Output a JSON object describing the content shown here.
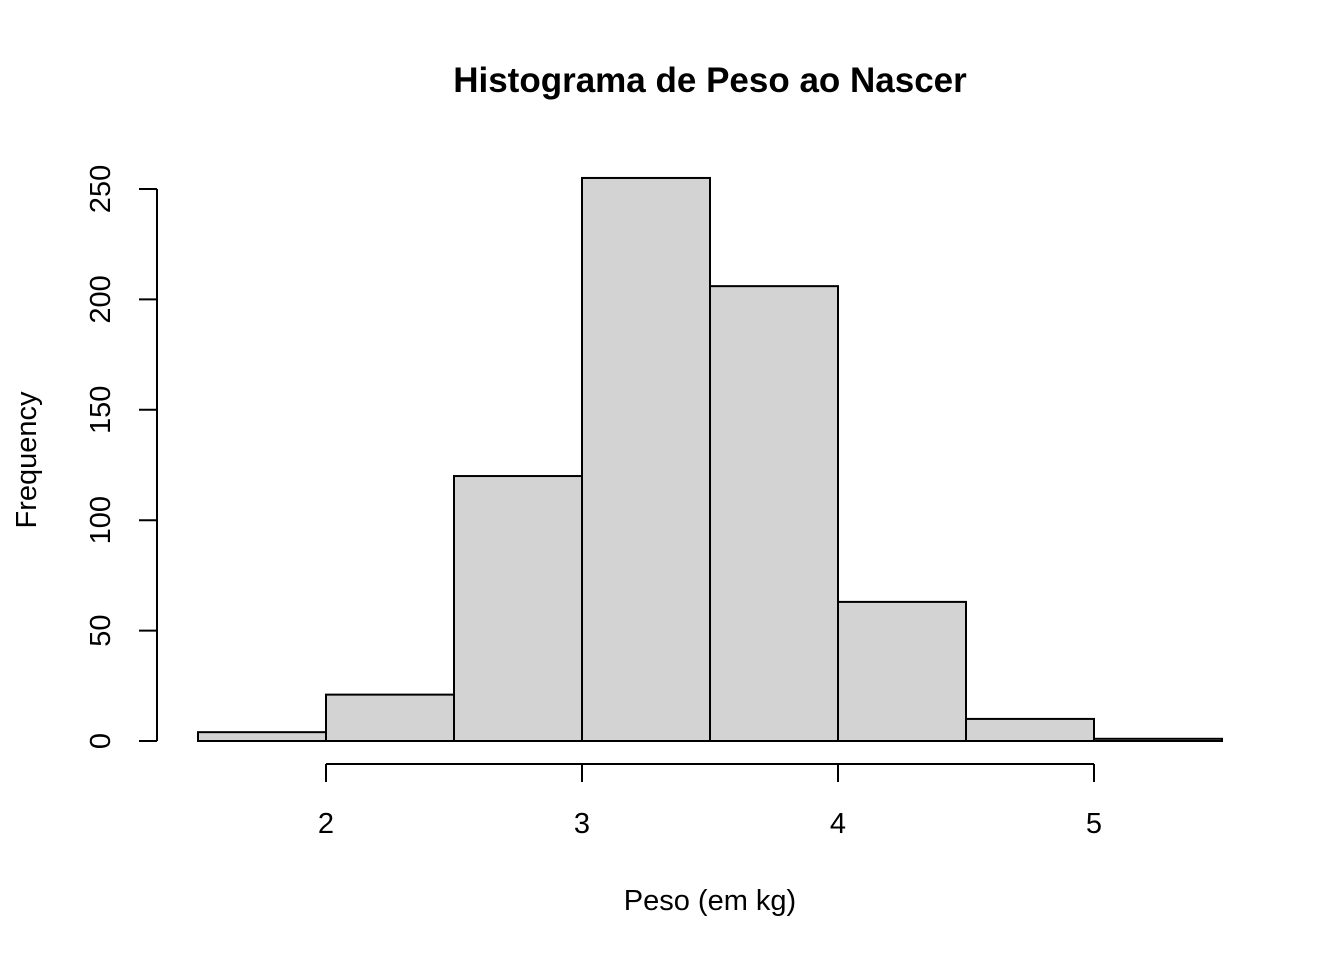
{
  "chart_data": {
    "type": "bar",
    "title": "Histograma de Peso ao Nascer",
    "xlabel": "Peso (em kg)",
    "ylabel": "Frequency",
    "bins": [
      {
        "from": 1.5,
        "to": 2.0,
        "value": 4
      },
      {
        "from": 2.0,
        "to": 2.5,
        "value": 21
      },
      {
        "from": 2.5,
        "to": 3.0,
        "value": 120
      },
      {
        "from": 3.0,
        "to": 3.5,
        "value": 255
      },
      {
        "from": 3.5,
        "to": 4.0,
        "value": 206
      },
      {
        "from": 4.0,
        "to": 4.5,
        "value": 63
      },
      {
        "from": 4.5,
        "to": 5.0,
        "value": 10
      },
      {
        "from": 5.0,
        "to": 5.5,
        "value": 1
      }
    ],
    "xlim": [
      1.5,
      5.5
    ],
    "ylim": [
      0,
      255
    ],
    "xticks": [
      "2",
      "3",
      "4",
      "5"
    ],
    "yticks": [
      "0",
      "50",
      "100",
      "150",
      "200",
      "250"
    ],
    "bar_color": "#d3d3d3",
    "grid": false,
    "legend": "none"
  }
}
